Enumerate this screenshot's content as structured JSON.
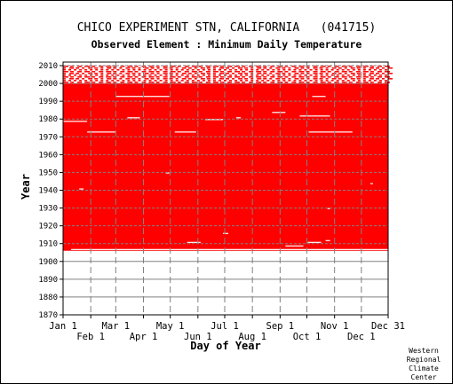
{
  "chart_data": {
    "type": "heatmap",
    "title": "CHICO EXPERIMENT STN, CALIFORNIA   (041715)",
    "subtitle": "Observed Element : Minimum Daily Temperature",
    "xlabel": "Day of Year",
    "ylabel": "Year",
    "xlim": [
      1,
      365
    ],
    "ylim": [
      1870,
      2012
    ],
    "yticks": [
      1870,
      1880,
      1890,
      1900,
      1910,
      1920,
      1930,
      1940,
      1950,
      1960,
      1970,
      1980,
      1990,
      2000,
      2010
    ],
    "xticks_top_row": [
      {
        "label": "Jan 1",
        "day": 1
      },
      {
        "label": "Mar 1",
        "day": 60
      },
      {
        "label": "May 1",
        "day": 121
      },
      {
        "label": "Jul 1",
        "day": 182
      },
      {
        "label": "Sep 1",
        "day": 244
      },
      {
        "label": "Nov 1",
        "day": 305
      },
      {
        "label": "Dec 31",
        "day": 365
      }
    ],
    "xticks_bottom_row": [
      {
        "label": "Feb 1",
        "day": 32
      },
      {
        "label": "Apr 1",
        "day": 91
      },
      {
        "label": "Jun 1",
        "day": 152
      },
      {
        "label": "Aug 1",
        "day": 213
      },
      {
        "label": "Oct 1",
        "day": 274
      },
      {
        "label": "Dec 1",
        "day": 335
      }
    ],
    "grid": true,
    "data_color": "#ff0000",
    "grid_color": "#808080",
    "background_color": "#ffffff",
    "observed_period": {
      "start_year": 1906,
      "end_year": 2010
    },
    "solid_coverage": {
      "start_year": 1906,
      "end_year": 2000
    },
    "sparse_coverage": {
      "start_year": 2000,
      "end_year": 2010
    },
    "missing_segments": [
      {
        "year": 1906,
        "start_day": 10,
        "end_day": 365
      },
      {
        "year": 1908,
        "start_day": 250,
        "end_day": 270
      },
      {
        "year": 1910,
        "start_day": 140,
        "end_day": 155
      },
      {
        "year": 1910,
        "start_day": 275,
        "end_day": 290
      },
      {
        "year": 1911,
        "start_day": 295,
        "end_day": 300
      },
      {
        "year": 1915,
        "start_day": 180,
        "end_day": 186
      },
      {
        "year": 1929,
        "start_day": 297,
        "end_day": 300
      },
      {
        "year": 1940,
        "start_day": 19,
        "end_day": 24
      },
      {
        "year": 1943,
        "start_day": 345,
        "end_day": 348
      },
      {
        "year": 1949,
        "start_day": 116,
        "end_day": 120
      },
      {
        "year": 1972,
        "start_day": 28,
        "end_day": 60
      },
      {
        "year": 1972,
        "start_day": 126,
        "end_day": 150
      },
      {
        "year": 1972,
        "start_day": 276,
        "end_day": 325
      },
      {
        "year": 1978,
        "start_day": 1,
        "end_day": 28
      },
      {
        "year": 1979,
        "start_day": 160,
        "end_day": 180
      },
      {
        "year": 1980,
        "start_day": 73,
        "end_day": 87
      },
      {
        "year": 1980,
        "start_day": 195,
        "end_day": 200
      },
      {
        "year": 1981,
        "start_day": 266,
        "end_day": 300
      },
      {
        "year": 1983,
        "start_day": 235,
        "end_day": 250
      },
      {
        "year": 1992,
        "start_day": 60,
        "end_day": 120
      },
      {
        "year": 1992,
        "start_day": 280,
        "end_day": 295
      }
    ]
  },
  "credit": [
    "Western",
    "Regional",
    "Climate",
    "Center"
  ]
}
